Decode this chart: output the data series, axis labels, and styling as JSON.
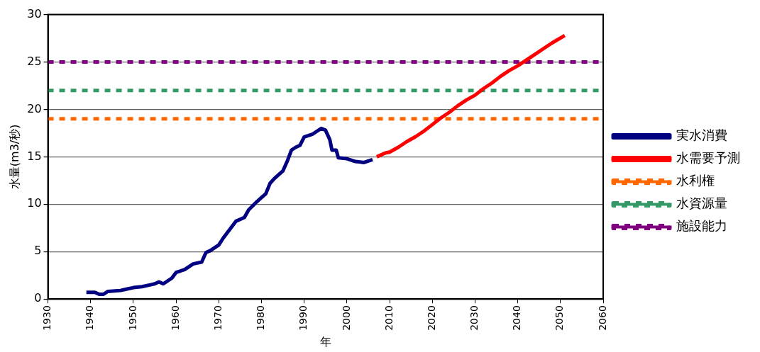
{
  "chart_data": {
    "type": "line",
    "xlabel": "年",
    "ylabel": "水量(m3/秒)",
    "xlim": [
      1930,
      2060
    ],
    "xticks": [
      1930,
      1940,
      1950,
      1960,
      1970,
      1980,
      1990,
      2000,
      2010,
      2020,
      2030,
      2040,
      2050,
      2060
    ],
    "ylim": [
      0,
      30
    ],
    "yticks": [
      0,
      5,
      10,
      15,
      20,
      25,
      30
    ],
    "grid": "y",
    "legend": "right",
    "marker": "none",
    "series": [
      {
        "name": "実水消費",
        "color": "#000080",
        "line_style": "solid",
        "x": [
          1939,
          1941,
          1942,
          1943,
          1944,
          1947,
          1948,
          1950,
          1952,
          1954,
          1955,
          1956,
          1957,
          1959,
          1960,
          1962,
          1964,
          1966,
          1967,
          1968,
          1970,
          1971,
          1973,
          1974,
          1976,
          1977,
          1979,
          1980,
          1981,
          1982,
          1983,
          1985,
          1986,
          1987,
          1988,
          1989,
          1990,
          1992,
          1994,
          1995,
          1996,
          1996.5,
          1997.5,
          1998,
          2000,
          2002,
          2004,
          2006
        ],
        "values": [
          0.7,
          0.7,
          0.5,
          0.5,
          0.8,
          0.9,
          1.0,
          1.2,
          1.3,
          1.5,
          1.6,
          1.8,
          1.6,
          2.2,
          2.8,
          3.1,
          3.7,
          3.9,
          4.9,
          5.1,
          5.7,
          6.4,
          7.6,
          8.2,
          8.6,
          9.4,
          10.3,
          10.7,
          11.1,
          12.2,
          12.7,
          13.5,
          14.5,
          15.7,
          16.0,
          16.2,
          17.1,
          17.4,
          18.0,
          17.8,
          16.8,
          15.7,
          15.7,
          14.9,
          14.8,
          14.5,
          14.4,
          14.7
        ]
      },
      {
        "name": "水需要予測",
        "color": "#ff0000",
        "line_style": "solid",
        "x": [
          2007,
          2009,
          2010,
          2012,
          2014,
          2016,
          2018,
          2020,
          2022,
          2024,
          2026,
          2028,
          2030,
          2032,
          2034,
          2036,
          2038,
          2040,
          2042,
          2044,
          2046,
          2048,
          2051
        ],
        "values": [
          15.0,
          15.4,
          15.5,
          16.0,
          16.6,
          17.1,
          17.7,
          18.4,
          19.1,
          19.7,
          20.4,
          21.0,
          21.5,
          22.2,
          22.8,
          23.5,
          24.1,
          24.6,
          25.2,
          25.8,
          26.4,
          27.0,
          27.8
        ]
      },
      {
        "name": "水利権",
        "color": "#ff6600",
        "line_style": "dotted",
        "x": [
          1930,
          2060
        ],
        "values": [
          19,
          19
        ]
      },
      {
        "name": "水資源量",
        "color": "#339966",
        "line_style": "dotted",
        "x": [
          1930,
          2060
        ],
        "values": [
          22,
          22
        ]
      },
      {
        "name": "施設能力",
        "color": "#800080",
        "line_style": "dotted",
        "x": [
          1930,
          2060
        ],
        "values": [
          25,
          25
        ]
      }
    ]
  }
}
